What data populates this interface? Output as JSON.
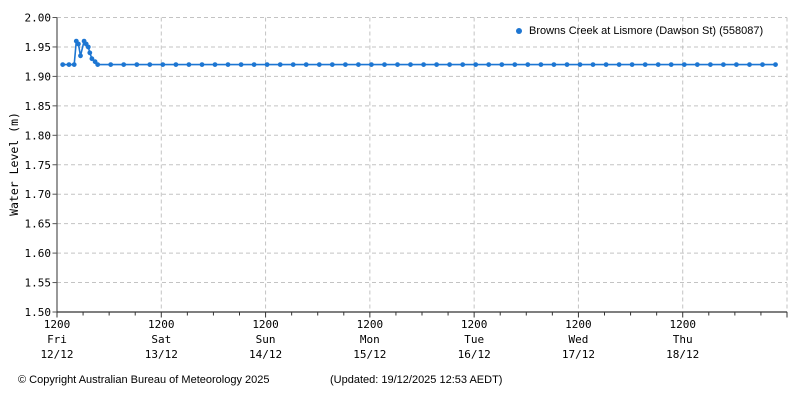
{
  "chart_data": {
    "type": "line",
    "title": "",
    "xlabel": "",
    "ylabel": "Water Level (m)",
    "ylim": [
      1.5,
      2.0
    ],
    "ytick_step": 0.05,
    "ytick_labels": [
      "1.50",
      "1.55",
      "1.60",
      "1.65",
      "1.70",
      "1.75",
      "1.80",
      "1.85",
      "1.90",
      "1.95",
      "2.00"
    ],
    "x_span_days": 7,
    "x_minor_tick_days": 0.25,
    "x_day_ticks": [
      {
        "time": "1200",
        "day": "Fri",
        "date": "12/12"
      },
      {
        "time": "1200",
        "day": "Sat",
        "date": "13/12"
      },
      {
        "time": "1200",
        "day": "Sun",
        "date": "14/12"
      },
      {
        "time": "1200",
        "day": "Mon",
        "date": "15/12"
      },
      {
        "time": "1200",
        "day": "Tue",
        "date": "16/12"
      },
      {
        "time": "1200",
        "day": "Wed",
        "date": "17/12"
      },
      {
        "time": "1200",
        "day": "Thu",
        "date": "18/12"
      }
    ],
    "grid": {
      "style": "dashed",
      "color": "#c3c3c3"
    },
    "legend_position": "top-right",
    "legend_label": "Browns Creek at Lismore (Dawson St) (558087)",
    "series": [
      {
        "name": "Browns Creek at Lismore (Dawson St) (558087)",
        "color": "#1d76d2",
        "marker": "circle",
        "points": [
          [
            0.055,
            1.92
          ],
          [
            0.115,
            1.92
          ],
          [
            0.165,
            1.92
          ],
          [
            0.185,
            1.96
          ],
          [
            0.205,
            1.955
          ],
          [
            0.225,
            1.935
          ],
          [
            0.26,
            1.96
          ],
          [
            0.28,
            1.955
          ],
          [
            0.3,
            1.95
          ],
          [
            0.315,
            1.94
          ],
          [
            0.335,
            1.93
          ],
          [
            0.365,
            1.925
          ],
          [
            0.39,
            1.92
          ],
          [
            0.515,
            1.92
          ],
          [
            0.64,
            1.92
          ],
          [
            0.765,
            1.92
          ],
          [
            0.89,
            1.92
          ],
          [
            1.015,
            1.92
          ],
          [
            1.14,
            1.92
          ],
          [
            1.265,
            1.92
          ],
          [
            1.39,
            1.92
          ],
          [
            1.515,
            1.92
          ],
          [
            1.64,
            1.92
          ],
          [
            1.765,
            1.92
          ],
          [
            1.89,
            1.92
          ],
          [
            2.015,
            1.92
          ],
          [
            2.14,
            1.92
          ],
          [
            2.265,
            1.92
          ],
          [
            2.39,
            1.92
          ],
          [
            2.515,
            1.92
          ],
          [
            2.64,
            1.92
          ],
          [
            2.765,
            1.92
          ],
          [
            2.89,
            1.92
          ],
          [
            3.015,
            1.92
          ],
          [
            3.14,
            1.92
          ],
          [
            3.265,
            1.92
          ],
          [
            3.39,
            1.92
          ],
          [
            3.515,
            1.92
          ],
          [
            3.64,
            1.92
          ],
          [
            3.765,
            1.92
          ],
          [
            3.89,
            1.92
          ],
          [
            4.015,
            1.92
          ],
          [
            4.14,
            1.92
          ],
          [
            4.265,
            1.92
          ],
          [
            4.39,
            1.92
          ],
          [
            4.515,
            1.92
          ],
          [
            4.64,
            1.92
          ],
          [
            4.765,
            1.92
          ],
          [
            4.89,
            1.92
          ],
          [
            5.015,
            1.92
          ],
          [
            5.14,
            1.92
          ],
          [
            5.265,
            1.92
          ],
          [
            5.39,
            1.92
          ],
          [
            5.515,
            1.92
          ],
          [
            5.64,
            1.92
          ],
          [
            5.765,
            1.92
          ],
          [
            5.89,
            1.92
          ],
          [
            6.015,
            1.92
          ],
          [
            6.14,
            1.92
          ],
          [
            6.265,
            1.92
          ],
          [
            6.39,
            1.92
          ],
          [
            6.515,
            1.92
          ],
          [
            6.64,
            1.92
          ],
          [
            6.765,
            1.92
          ],
          [
            6.89,
            1.92
          ]
        ]
      }
    ],
    "colors": {
      "series_blue": "#1d76d2",
      "grid_gray": "#c3c3c3",
      "axis_gray": "#555555"
    }
  },
  "footer": {
    "copyright": "© Copyright Australian Bureau of Meteorology 2025",
    "updated": "(Updated: 19/12/2025 12:53 AEDT)"
  }
}
